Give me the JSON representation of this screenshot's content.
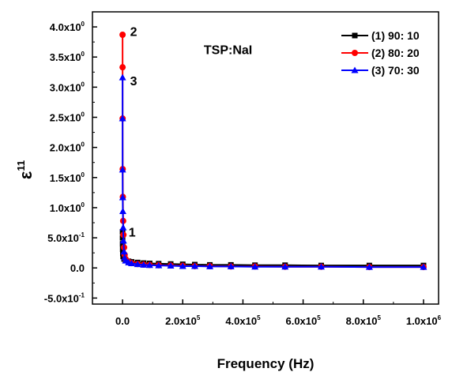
{
  "chart_data": {
    "type": "line",
    "title": "",
    "xlabel": "Frequency (Hz)",
    "ylabel_main": "ε",
    "ylabel_sup": "11",
    "xlim": [
      -100000,
      1050000
    ],
    "ylim": [
      -0.6,
      4.25
    ],
    "grid": false,
    "legend_position": "top-right",
    "x_ticks": [
      {
        "value": 0,
        "base": "0.0",
        "sup": ""
      },
      {
        "value": 200000,
        "base": "2.0x10",
        "sup": "5"
      },
      {
        "value": 400000,
        "base": "4.0x10",
        "sup": "5"
      },
      {
        "value": 600000,
        "base": "6.0x10",
        "sup": "5"
      },
      {
        "value": 800000,
        "base": "8.0x10",
        "sup": "5"
      },
      {
        "value": 1000000,
        "base": "1.0x10",
        "sup": "6"
      }
    ],
    "y_ticks": [
      {
        "value": -0.5,
        "base": "-5.0x10",
        "sup": "-1"
      },
      {
        "value": 0.0,
        "base": "0.0",
        "sup": ""
      },
      {
        "value": 0.5,
        "base": "5.0x10",
        "sup": "-1"
      },
      {
        "value": 1.0,
        "base": "1.0x10",
        "sup": "0"
      },
      {
        "value": 1.5,
        "base": "1.5x10",
        "sup": "0"
      },
      {
        "value": 2.0,
        "base": "2.0x10",
        "sup": "0"
      },
      {
        "value": 2.5,
        "base": "2.5x10",
        "sup": "0"
      },
      {
        "value": 3.0,
        "base": "3.0x10",
        "sup": "0"
      },
      {
        "value": 3.5,
        "base": "3.5x10",
        "sup": "0"
      },
      {
        "value": 4.0,
        "base": "4.0x10",
        "sup": "0"
      }
    ],
    "series": [
      {
        "name": "(1) 90: 10",
        "color": "#000000",
        "marker": "square",
        "x": [
          50,
          100,
          200,
          500,
          1000,
          2000,
          5000,
          10000,
          20000,
          30000,
          50000,
          70000,
          90000,
          120000,
          160000,
          200000,
          240000,
          290000,
          360000,
          440000,
          540000,
          660000,
          820000,
          1000000
        ],
        "y": [
          0.6,
          0.5,
          0.4,
          0.31,
          0.24,
          0.19,
          0.15,
          0.13,
          0.11,
          0.1,
          0.09,
          0.08,
          0.075,
          0.07,
          0.065,
          0.06,
          0.055,
          0.05,
          0.05,
          0.045,
          0.045,
          0.04,
          0.04,
          0.04
        ]
      },
      {
        "name": "(2) 80: 20",
        "color": "#ff0000",
        "marker": "circle",
        "x": [
          50,
          100,
          200,
          500,
          1000,
          2000,
          3000,
          5000,
          7000,
          10000,
          20000,
          30000,
          50000,
          70000,
          90000,
          120000,
          160000,
          200000,
          240000,
          290000,
          360000,
          440000,
          540000,
          660000,
          820000,
          1000000
        ],
        "y": [
          3.87,
          3.33,
          2.48,
          1.64,
          1.18,
          0.78,
          0.55,
          0.34,
          0.22,
          0.15,
          0.1,
          0.08,
          0.065,
          0.055,
          0.05,
          0.045,
          0.04,
          0.035,
          0.03,
          0.03,
          0.025,
          0.025,
          0.02,
          0.02,
          0.015,
          0.015
        ]
      },
      {
        "name": "(3) 70: 30",
        "color": "#0000ff",
        "marker": "triangle",
        "x": [
          50,
          100,
          200,
          500,
          1000,
          2000,
          3000,
          5000,
          7000,
          10000,
          20000,
          30000,
          50000,
          70000,
          90000,
          120000,
          160000,
          200000,
          240000,
          290000,
          360000,
          440000,
          540000,
          660000,
          820000,
          1000000
        ],
        "y": [
          3.16,
          2.48,
          1.63,
          1.17,
          0.94,
          0.67,
          0.45,
          0.27,
          0.17,
          0.12,
          0.09,
          0.075,
          0.06,
          0.05,
          0.045,
          0.04,
          0.035,
          0.03,
          0.03,
          0.025,
          0.025,
          0.02,
          0.02,
          0.02,
          0.015,
          0.015
        ]
      }
    ],
    "annotations": [
      {
        "text": "TSP:NaI",
        "x": 270000,
        "y": 3.55
      },
      {
        "text": "2",
        "x": 25000,
        "y": 3.85
      },
      {
        "text": "3",
        "x": 25000,
        "y": 3.03
      },
      {
        "text": "1",
        "x": 20000,
        "y": 0.52
      }
    ]
  }
}
